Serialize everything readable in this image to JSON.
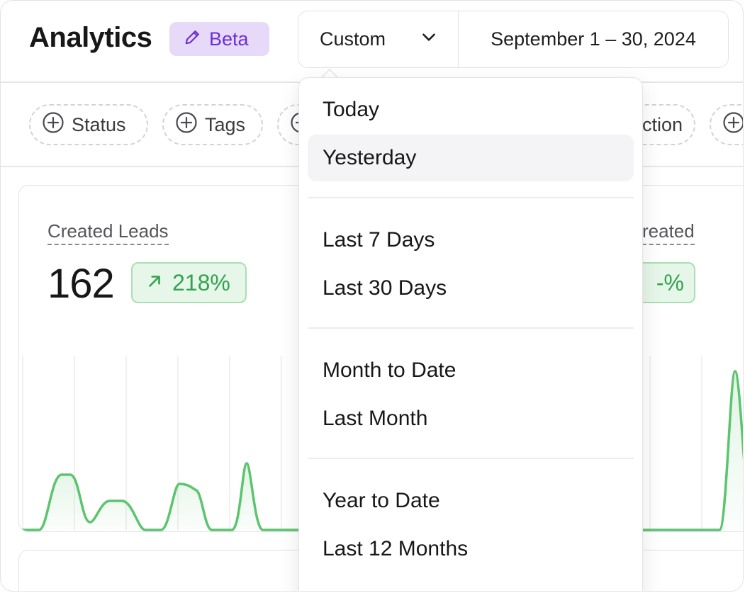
{
  "header": {
    "title": "Analytics",
    "badge_label": "Beta",
    "badge_icon": "pencil-icon",
    "preset_label": "Custom",
    "date_range": "September 1 – 30, 2024"
  },
  "filters": [
    {
      "label": "Status",
      "icon": "plus-circle-icon"
    },
    {
      "label": "Tags",
      "icon": "plus-circle-icon"
    },
    {
      "label": "",
      "icon": "plus-circle-icon"
    },
    {
      "label": "ction",
      "icon": "plus-circle-icon"
    },
    {
      "label": "",
      "icon": "plus-circle-icon"
    }
  ],
  "metrics": [
    {
      "label": "Created Leads",
      "value": "162",
      "delta": "218%",
      "delta_icon": "arrow-up-right-icon"
    },
    {
      "label": "reated",
      "value": "",
      "delta": "-%"
    }
  ],
  "colors": {
    "accent_purple": "#6c2fd6",
    "badge_bg": "#e6daf8",
    "positive_green": "#33a24d",
    "line_green": "#5cc46f"
  },
  "dropdown": {
    "groups": [
      {
        "items": [
          {
            "label": "Today",
            "hovered": false
          },
          {
            "label": "Yesterday",
            "hovered": true
          }
        ]
      },
      {
        "items": [
          {
            "label": "Last 7 Days"
          },
          {
            "label": "Last 30 Days"
          }
        ]
      },
      {
        "items": [
          {
            "label": "Month to Date"
          },
          {
            "label": "Last Month"
          }
        ]
      },
      {
        "items": [
          {
            "label": "Year to Date"
          },
          {
            "label": "Last 12 Months"
          }
        ]
      }
    ]
  }
}
